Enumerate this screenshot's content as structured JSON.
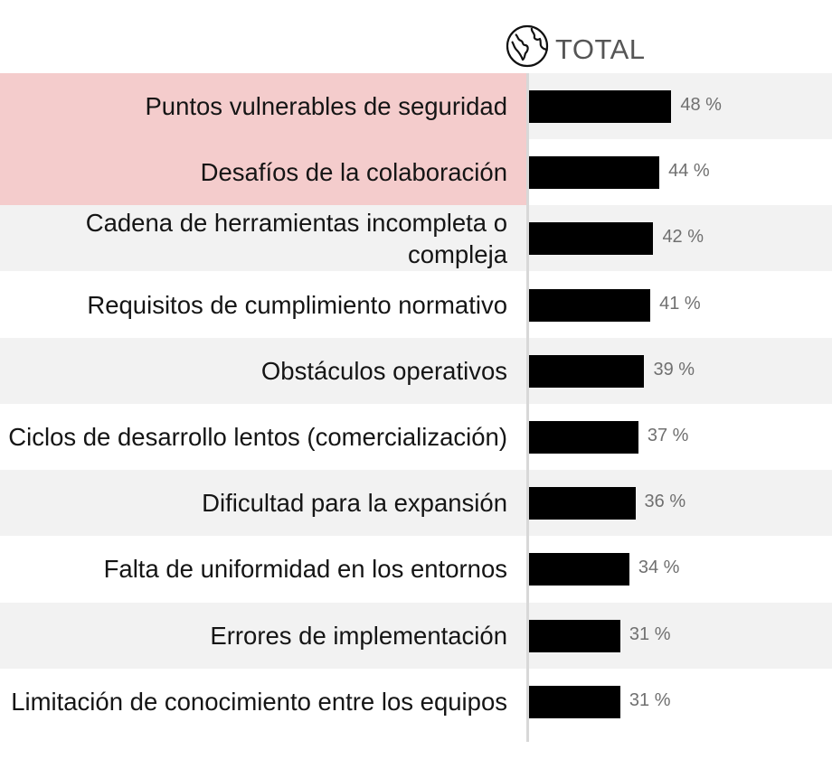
{
  "chart_data": {
    "type": "bar",
    "orientation": "horizontal",
    "title": "TOTAL",
    "title_icon": "globe-icon",
    "categories": [
      "Puntos vulnerables de seguridad",
      "Desafíos de la colaboración",
      "Cadena de herramientas incompleta o compleja",
      "Requisitos de cumplimiento normativo",
      "Obstáculos operativos",
      "Ciclos de desarrollo lentos (comercialización)",
      "Dificultad para la expansión",
      "Falta de uniformidad en los entornos",
      "Errores de implementación",
      "Limitación de conocimiento entre los equipos"
    ],
    "values": [
      48,
      44,
      42,
      41,
      39,
      37,
      36,
      34,
      31,
      31
    ],
    "value_labels": [
      "48 %",
      "44 %",
      "42 %",
      "41 %",
      "39 %",
      "37 %",
      "36 %",
      "34 %",
      "31 %",
      "31 %"
    ],
    "highlighted": [
      0,
      1
    ],
    "colors": {
      "bar": "#000000",
      "highlight": "#f4cccc",
      "stripe": "#f2f2f2",
      "value_text": "#707070"
    },
    "xlim": [
      0,
      100
    ]
  }
}
